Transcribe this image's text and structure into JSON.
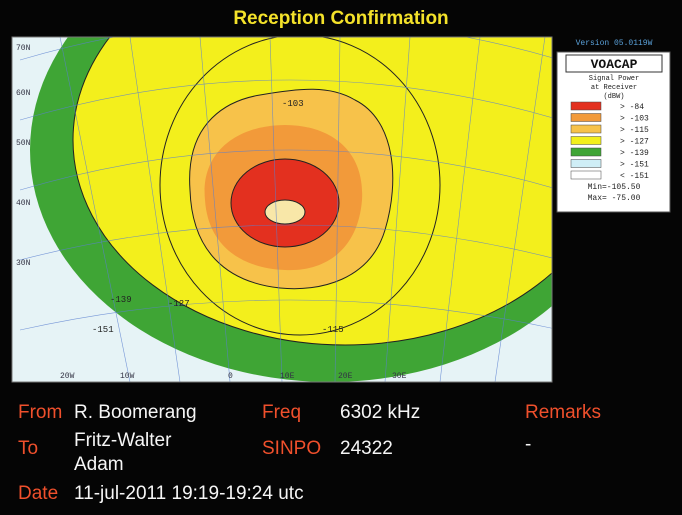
{
  "header": {
    "title": "Reception Confirmation"
  },
  "map": {
    "contour_labels": [
      "-103",
      "-139",
      "-127",
      "-151",
      "-115"
    ],
    "lat_labels": [
      "70N",
      "60N",
      "50N",
      "40N",
      "30N"
    ],
    "lon_labels": [
      "20W",
      "10W",
      "0",
      "10E",
      "20E",
      "30E"
    ]
  },
  "legend": {
    "version": "Version 05.0119W",
    "title": "VOACAP",
    "subtitle": [
      "Signal Power",
      "at Receiver",
      "(dBW)"
    ],
    "items": [
      {
        "label": "> -84",
        "color": "#e3301f"
      },
      {
        "label": "> -103",
        "color": "#f29a3a"
      },
      {
        "label": "> -115",
        "color": "#f7c24a"
      },
      {
        "label": "> -127",
        "color": "#f3ef1c"
      },
      {
        "label": "> -139",
        "color": "#3fa535"
      },
      {
        "label": "> -151",
        "color": "#cfeef6"
      },
      {
        "label": "< -151",
        "color": "#ffffff"
      }
    ],
    "min": "Min=-105.50",
    "max": "Max= -75.00"
  },
  "card": {
    "from_label": "From",
    "from": "R. Boomerang",
    "freq_label": "Freq",
    "freq": "6302 kHz",
    "remarks_label": "Remarks",
    "remarks": "-",
    "to_label": "To",
    "to": [
      "Fritz-Walter",
      "Adam"
    ],
    "sinpo_label": "SINPO",
    "sinpo": "24322",
    "date_label": "Date",
    "date": "11-jul-2011 19:19-19:24 utc"
  }
}
